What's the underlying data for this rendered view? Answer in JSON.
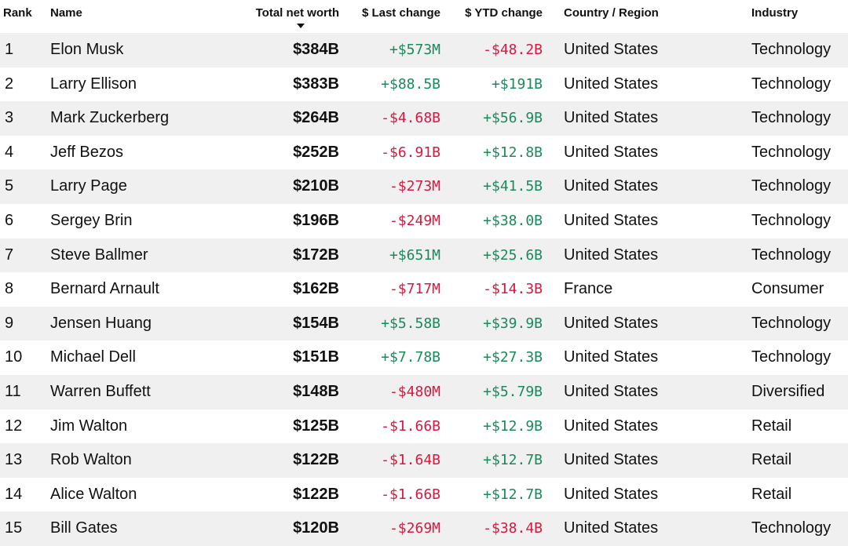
{
  "colors": {
    "positive": "#1a8a5a",
    "negative": "#d8183e",
    "stripe": "#f0f0f0"
  },
  "header": {
    "rank": "Rank",
    "name": "Name",
    "net_worth": "Total net worth",
    "last_change": "$ Last change",
    "ytd_change": "$ YTD change",
    "country": "Country / Region",
    "industry": "Industry",
    "sort_icon": "caret-down-icon"
  },
  "rows": [
    {
      "rank": "1",
      "name": "Elon Musk",
      "net_worth": "$384B",
      "last": "+$573M",
      "ytd": "-$48.2B",
      "country": "United States",
      "industry": "Technology"
    },
    {
      "rank": "2",
      "name": "Larry Ellison",
      "net_worth": "$383B",
      "last": "+$88.5B",
      "ytd": "+$191B",
      "country": "United States",
      "industry": "Technology"
    },
    {
      "rank": "3",
      "name": "Mark Zuckerberg",
      "net_worth": "$264B",
      "last": "-$4.68B",
      "ytd": "+$56.9B",
      "country": "United States",
      "industry": "Technology"
    },
    {
      "rank": "4",
      "name": "Jeff Bezos",
      "net_worth": "$252B",
      "last": "-$6.91B",
      "ytd": "+$12.8B",
      "country": "United States",
      "industry": "Technology"
    },
    {
      "rank": "5",
      "name": "Larry Page",
      "net_worth": "$210B",
      "last": "-$273M",
      "ytd": "+$41.5B",
      "country": "United States",
      "industry": "Technology"
    },
    {
      "rank": "6",
      "name": "Sergey Brin",
      "net_worth": "$196B",
      "last": "-$249M",
      "ytd": "+$38.0B",
      "country": "United States",
      "industry": "Technology"
    },
    {
      "rank": "7",
      "name": "Steve Ballmer",
      "net_worth": "$172B",
      "last": "+$651M",
      "ytd": "+$25.6B",
      "country": "United States",
      "industry": "Technology"
    },
    {
      "rank": "8",
      "name": "Bernard Arnault",
      "net_worth": "$162B",
      "last": "-$717M",
      "ytd": "-$14.3B",
      "country": "France",
      "industry": "Consumer"
    },
    {
      "rank": "9",
      "name": "Jensen Huang",
      "net_worth": "$154B",
      "last": "+$5.58B",
      "ytd": "+$39.9B",
      "country": "United States",
      "industry": "Technology"
    },
    {
      "rank": "10",
      "name": "Michael Dell",
      "net_worth": "$151B",
      "last": "+$7.78B",
      "ytd": "+$27.3B",
      "country": "United States",
      "industry": "Technology"
    },
    {
      "rank": "11",
      "name": "Warren Buffett",
      "net_worth": "$148B",
      "last": "-$480M",
      "ytd": "+$5.79B",
      "country": "United States",
      "industry": "Diversified"
    },
    {
      "rank": "12",
      "name": "Jim Walton",
      "net_worth": "$125B",
      "last": "-$1.66B",
      "ytd": "+$12.9B",
      "country": "United States",
      "industry": "Retail"
    },
    {
      "rank": "13",
      "name": "Rob Walton",
      "net_worth": "$122B",
      "last": "-$1.64B",
      "ytd": "+$12.7B",
      "country": "United States",
      "industry": "Retail"
    },
    {
      "rank": "14",
      "name": "Alice Walton",
      "net_worth": "$122B",
      "last": "-$1.66B",
      "ytd": "+$12.7B",
      "country": "United States",
      "industry": "Retail"
    },
    {
      "rank": "15",
      "name": "Bill Gates",
      "net_worth": "$120B",
      "last": "-$269M",
      "ytd": "-$38.4B",
      "country": "United States",
      "industry": "Technology"
    }
  ]
}
